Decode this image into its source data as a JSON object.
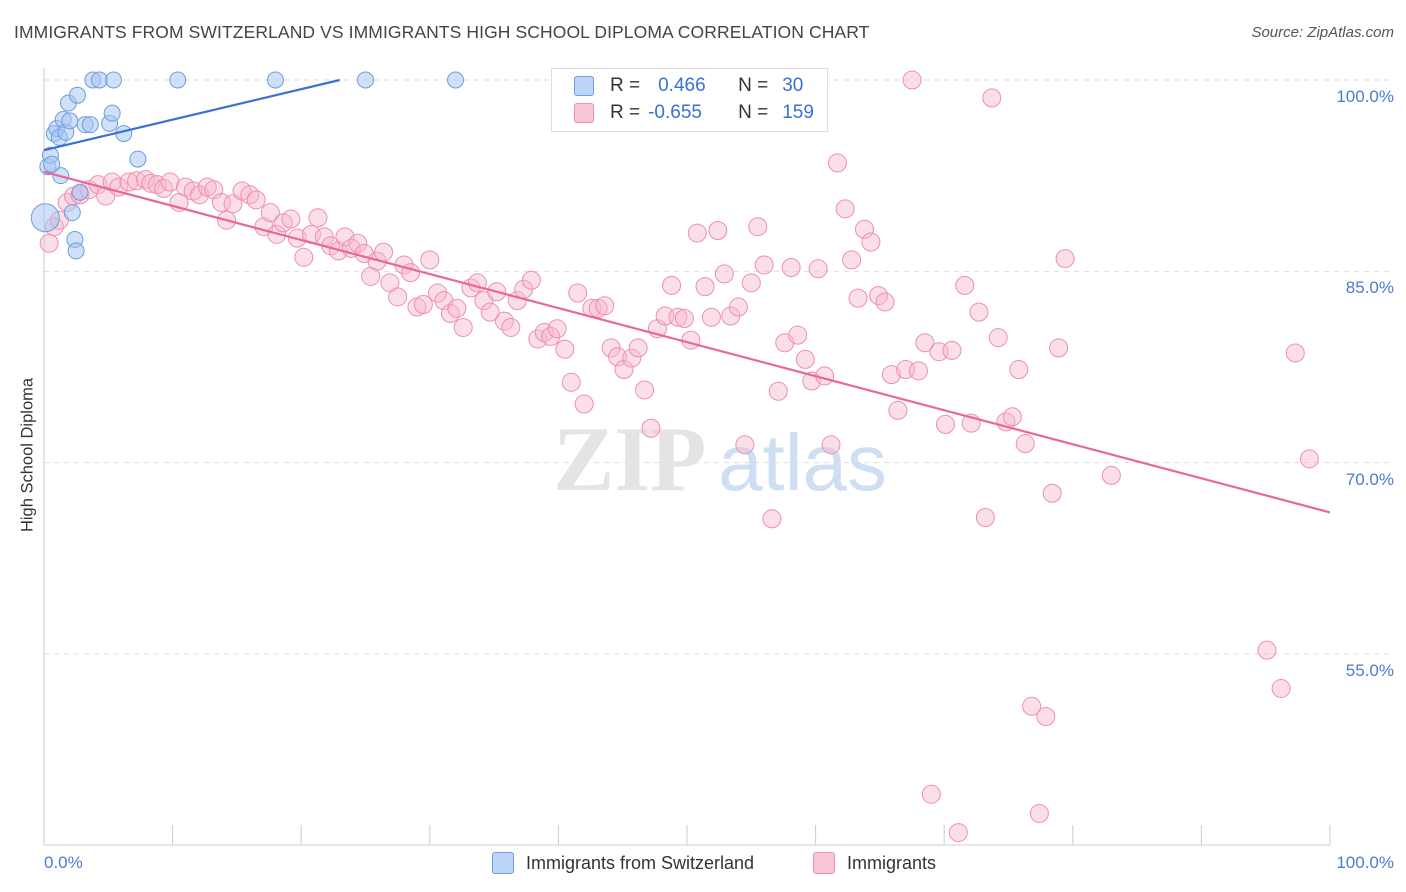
{
  "header": {
    "title": "IMMIGRANTS FROM SWITZERLAND VS IMMIGRANTS HIGH SCHOOL DIPLOMA CORRELATION CHART",
    "source": "Source: ZipAtlas.com"
  },
  "watermark": {
    "zip": "ZIP",
    "atlas": "atlas"
  },
  "legend_top": {
    "rows": [
      {
        "r_label": "R =",
        "r_value": "0.466",
        "n_label": "N =",
        "n_value": "30"
      },
      {
        "r_label": "R =",
        "r_value": "-0.655",
        "n_label": "N =",
        "n_value": "159"
      }
    ]
  },
  "legend_bottom": {
    "items": [
      {
        "label": "Immigrants from Switzerland"
      },
      {
        "label": "Immigrants"
      }
    ]
  },
  "colors": {
    "blue_fill": "#a8c6f0",
    "blue_stroke": "#6e9de0",
    "blue_line": "#3a72d0",
    "pink_fill": "#f7b8cc",
    "pink_stroke": "#ee8fae",
    "pink_line": "#e8679a",
    "tick_text": "#4a7bd1",
    "grid": "#dddddd"
  },
  "chart_data": {
    "type": "scatter",
    "title": "IMMIGRANTS FROM SWITZERLAND VS IMMIGRANTS HIGH SCHOOL DIPLOMA CORRELATION CHART",
    "xlabel": "",
    "ylabel": "High School Diploma",
    "xlim": [
      0,
      100
    ],
    "ylim": [
      41,
      101
    ],
    "x_tick_labels": [
      "0.0%",
      "100.0%"
    ],
    "y_ticks": [
      100,
      85,
      70,
      55
    ],
    "y_tick_labels": [
      "100.0%",
      "85.0%",
      "70.0%",
      "55.0%"
    ],
    "grid": "horizontal dashed",
    "legend": "bottom-center",
    "series": [
      {
        "name": "Immigrants from Switzerland",
        "R": 0.466,
        "N": 30,
        "trend": {
          "x": [
            0,
            23
          ],
          "y": [
            94.5,
            100.0
          ]
        },
        "points": [
          [
            0.1,
            89.2
          ],
          [
            0.3,
            93.2
          ],
          [
            0.5,
            94.1
          ],
          [
            0.8,
            95.8
          ],
          [
            1.0,
            96.2
          ],
          [
            1.2,
            95.5
          ],
          [
            1.3,
            92.5
          ],
          [
            1.5,
            96.9
          ],
          [
            1.7,
            95.9
          ],
          [
            1.9,
            98.2
          ],
          [
            2.0,
            96.8
          ],
          [
            2.2,
            89.6
          ],
          [
            2.4,
            87.5
          ],
          [
            2.5,
            86.6
          ],
          [
            2.6,
            98.8
          ],
          [
            2.8,
            91.2
          ],
          [
            3.2,
            96.5
          ],
          [
            3.6,
            96.5
          ],
          [
            3.8,
            100.0
          ],
          [
            4.3,
            100.0
          ],
          [
            5.1,
            96.6
          ],
          [
            5.3,
            97.4
          ],
          [
            5.4,
            100.0
          ],
          [
            6.2,
            95.8
          ],
          [
            7.3,
            93.8
          ],
          [
            10.4,
            100.0
          ],
          [
            18.0,
            100.0
          ],
          [
            25.0,
            100.0
          ],
          [
            32.0,
            100.0
          ],
          [
            0.6,
            93.4
          ]
        ]
      },
      {
        "name": "Immigrants",
        "R": -0.655,
        "N": 159,
        "trend": {
          "x": [
            0,
            100
          ],
          "y": [
            92.8,
            66.1
          ]
        },
        "points": [
          [
            0.4,
            87.2
          ],
          [
            0.8,
            88.5
          ],
          [
            1.2,
            89.0
          ],
          [
            1.8,
            90.4
          ],
          [
            2.3,
            90.9
          ],
          [
            2.8,
            91.0
          ],
          [
            3.5,
            91.4
          ],
          [
            4.2,
            91.8
          ],
          [
            4.8,
            90.9
          ],
          [
            5.3,
            92.0
          ],
          [
            5.8,
            91.6
          ],
          [
            6.6,
            92.0
          ],
          [
            7.2,
            92.1
          ],
          [
            7.9,
            92.2
          ],
          [
            8.3,
            91.9
          ],
          [
            8.8,
            91.8
          ],
          [
            9.3,
            91.5
          ],
          [
            9.8,
            92.0
          ],
          [
            10.5,
            90.4
          ],
          [
            11.0,
            91.6
          ],
          [
            11.6,
            91.3
          ],
          [
            12.1,
            91.0
          ],
          [
            12.7,
            91.6
          ],
          [
            13.2,
            91.4
          ],
          [
            13.8,
            90.4
          ],
          [
            14.2,
            89.0
          ],
          [
            14.7,
            90.3
          ],
          [
            15.4,
            91.3
          ],
          [
            16.0,
            91.0
          ],
          [
            16.5,
            90.6
          ],
          [
            17.1,
            88.5
          ],
          [
            17.6,
            89.6
          ],
          [
            18.1,
            87.9
          ],
          [
            18.6,
            88.8
          ],
          [
            19.2,
            89.1
          ],
          [
            19.7,
            87.6
          ],
          [
            20.2,
            86.1
          ],
          [
            20.8,
            87.9
          ],
          [
            21.3,
            89.2
          ],
          [
            21.8,
            87.7
          ],
          [
            22.3,
            87.0
          ],
          [
            22.9,
            86.6
          ],
          [
            23.4,
            87.7
          ],
          [
            23.9,
            86.8
          ],
          [
            24.4,
            87.2
          ],
          [
            24.9,
            86.4
          ],
          [
            25.4,
            84.6
          ],
          [
            25.9,
            85.8
          ],
          [
            26.4,
            86.5
          ],
          [
            26.9,
            84.1
          ],
          [
            27.5,
            83.0
          ],
          [
            28.0,
            85.5
          ],
          [
            28.5,
            84.9
          ],
          [
            29.0,
            82.2
          ],
          [
            29.5,
            82.4
          ],
          [
            30.0,
            85.9
          ],
          [
            30.6,
            83.3
          ],
          [
            31.1,
            82.7
          ],
          [
            31.6,
            81.7
          ],
          [
            32.1,
            82.1
          ],
          [
            32.6,
            80.6
          ],
          [
            33.2,
            83.7
          ],
          [
            33.7,
            84.1
          ],
          [
            34.2,
            82.7
          ],
          [
            34.7,
            81.8
          ],
          [
            35.2,
            83.4
          ],
          [
            35.8,
            81.1
          ],
          [
            36.3,
            80.6
          ],
          [
            36.8,
            82.7
          ],
          [
            37.3,
            83.6
          ],
          [
            37.9,
            84.3
          ],
          [
            38.4,
            79.7
          ],
          [
            38.9,
            80.2
          ],
          [
            39.4,
            79.9
          ],
          [
            39.9,
            80.5
          ],
          [
            40.5,
            78.9
          ],
          [
            41.0,
            76.3
          ],
          [
            41.5,
            83.3
          ],
          [
            42.0,
            74.6
          ],
          [
            42.6,
            82.1
          ],
          [
            43.1,
            82.1
          ],
          [
            43.6,
            82.3
          ],
          [
            44.1,
            79.0
          ],
          [
            44.6,
            78.3
          ],
          [
            45.1,
            77.3
          ],
          [
            45.7,
            78.2
          ],
          [
            46.2,
            79.0
          ],
          [
            46.7,
            75.7
          ],
          [
            47.2,
            72.7
          ],
          [
            47.7,
            80.5
          ],
          [
            48.3,
            81.5
          ],
          [
            48.8,
            83.9
          ],
          [
            49.3,
            81.4
          ],
          [
            49.8,
            81.3
          ],
          [
            50.3,
            79.6
          ],
          [
            50.8,
            88.0
          ],
          [
            51.4,
            83.8
          ],
          [
            51.9,
            81.4
          ],
          [
            52.4,
            88.2
          ],
          [
            52.9,
            84.8
          ],
          [
            53.4,
            81.5
          ],
          [
            54.0,
            82.2
          ],
          [
            54.5,
            71.4
          ],
          [
            55.0,
            84.1
          ],
          [
            55.5,
            88.5
          ],
          [
            56.0,
            85.5
          ],
          [
            56.6,
            65.6
          ],
          [
            57.1,
            75.6
          ],
          [
            57.6,
            79.4
          ],
          [
            58.1,
            85.3
          ],
          [
            58.6,
            80.0
          ],
          [
            59.2,
            78.1
          ],
          [
            59.7,
            76.4
          ],
          [
            60.2,
            85.2
          ],
          [
            60.7,
            76.8
          ],
          [
            61.2,
            71.4
          ],
          [
            61.7,
            93.5
          ],
          [
            62.3,
            89.9
          ],
          [
            62.8,
            85.9
          ],
          [
            63.3,
            82.9
          ],
          [
            63.8,
            88.3
          ],
          [
            64.3,
            87.3
          ],
          [
            64.9,
            83.1
          ],
          [
            65.4,
            82.6
          ],
          [
            65.9,
            76.9
          ],
          [
            66.4,
            74.1
          ],
          [
            67.0,
            77.3
          ],
          [
            67.5,
            100.0
          ],
          [
            68.0,
            77.2
          ],
          [
            68.5,
            79.4
          ],
          [
            69.0,
            44.0
          ],
          [
            69.6,
            78.7
          ],
          [
            70.1,
            73.0
          ],
          [
            70.6,
            78.8
          ],
          [
            71.1,
            41.0
          ],
          [
            71.6,
            83.9
          ],
          [
            72.1,
            73.1
          ],
          [
            72.7,
            81.8
          ],
          [
            73.2,
            65.7
          ],
          [
            73.7,
            98.6
          ],
          [
            74.2,
            79.8
          ],
          [
            74.8,
            73.2
          ],
          [
            75.3,
            73.6
          ],
          [
            75.8,
            77.3
          ],
          [
            76.3,
            71.5
          ],
          [
            76.8,
            50.9
          ],
          [
            77.4,
            42.5
          ],
          [
            77.9,
            50.1
          ],
          [
            78.4,
            67.6
          ],
          [
            78.9,
            79.0
          ],
          [
            79.4,
            86.0
          ],
          [
            95.1,
            55.3
          ],
          [
            96.2,
            52.3
          ],
          [
            97.3,
            78.6
          ],
          [
            98.4,
            70.3
          ],
          [
            83.0,
            69.0
          ]
        ]
      }
    ]
  }
}
